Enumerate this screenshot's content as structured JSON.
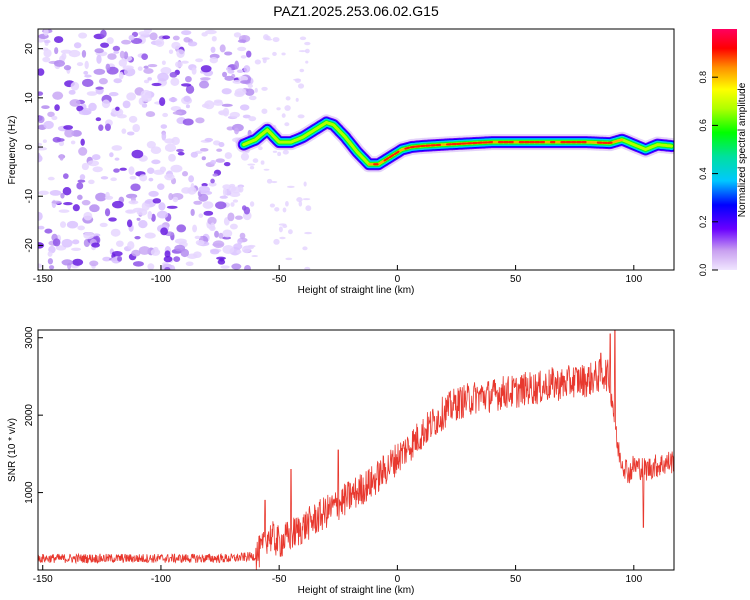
{
  "page": {
    "title": "PAZ1.2025.253.06.02.G15"
  },
  "chart_data": [
    {
      "type": "heatmap",
      "title": "PAZ1.2025.253.06.02.G15",
      "xlabel": "Height of straight line (km)",
      "ylabel": "Frequency (Hz)",
      "xlim": [
        -152,
        117
      ],
      "ylim": [
        -25,
        24
      ],
      "xticks": [
        -150,
        -100,
        -50,
        0,
        50,
        100
      ],
      "yticks": [
        -20,
        -10,
        0,
        10,
        20
      ],
      "tone_ridge": {
        "x": [
          -65,
          -60,
          -55,
          -50,
          -45,
          -40,
          -35,
          -30,
          -27,
          -22,
          -17,
          -12,
          -8,
          -3,
          2,
          6,
          10,
          20,
          40,
          60,
          80,
          90,
          95,
          100,
          105,
          110,
          116
        ],
        "y": [
          0.5,
          1.5,
          3.5,
          1,
          1,
          2,
          3.5,
          5,
          4.5,
          2,
          -1,
          -3.5,
          -3.5,
          -2,
          -0.5,
          0,
          0.2,
          0.5,
          1,
          1,
          1,
          0.8,
          1.5,
          0.5,
          -0.5,
          0.5,
          0.2
        ]
      },
      "noise_region_x": [
        -152,
        -62
      ],
      "colorbar": {
        "label": "Normalized spectral amplitude",
        "range": [
          0,
          1
        ],
        "ticks": [
          "0.0",
          "0.2",
          "0.4",
          "0.6",
          "0.8"
        ]
      }
    },
    {
      "type": "line",
      "xlabel": "Height of straight line (km)",
      "ylabel": "SNR (10 * v/v)",
      "xlim": [
        -152,
        117
      ],
      "ylim": [
        0,
        3100
      ],
      "xticks": [
        -150,
        -100,
        -50,
        0,
        50,
        100
      ],
      "yticks": [
        1000,
        2000,
        3000
      ],
      "series": [
        {
          "name": "SNR",
          "color": "#e8382e",
          "x": [
            -152,
            -120,
            -90,
            -70,
            -60,
            -56,
            -55,
            -52,
            -50,
            -45,
            -40,
            -35,
            -30,
            -25,
            -20,
            -15,
            -10,
            -5,
            0,
            5,
            10,
            15,
            20,
            25,
            30,
            35,
            40,
            45,
            50,
            55,
            60,
            65,
            70,
            75,
            80,
            85,
            88,
            90,
            92,
            93,
            95,
            98,
            100,
            105,
            110,
            116
          ],
          "y": [
            150,
            150,
            150,
            150,
            180,
            300,
            450,
            400,
            350,
            450,
            550,
            650,
            750,
            850,
            950,
            1050,
            1150,
            1300,
            1450,
            1600,
            1750,
            1900,
            2050,
            2150,
            2200,
            2250,
            2250,
            2300,
            2300,
            2350,
            2350,
            2400,
            2400,
            2450,
            2450,
            2500,
            2550,
            2450,
            1900,
            1600,
            1400,
            1250,
            1350,
            1300,
            1350,
            1400
          ],
          "spikes": [
            {
              "x": -56,
              "y": 900
            },
            {
              "x": -45,
              "y": 1300
            },
            {
              "x": -25,
              "y": 1550
            },
            {
              "x": 86,
              "y": 2800
            },
            {
              "x": 90,
              "y": 3050
            },
            {
              "x": 92,
              "y": 3100
            },
            {
              "x": 104,
              "y": 550
            }
          ]
        }
      ]
    }
  ]
}
